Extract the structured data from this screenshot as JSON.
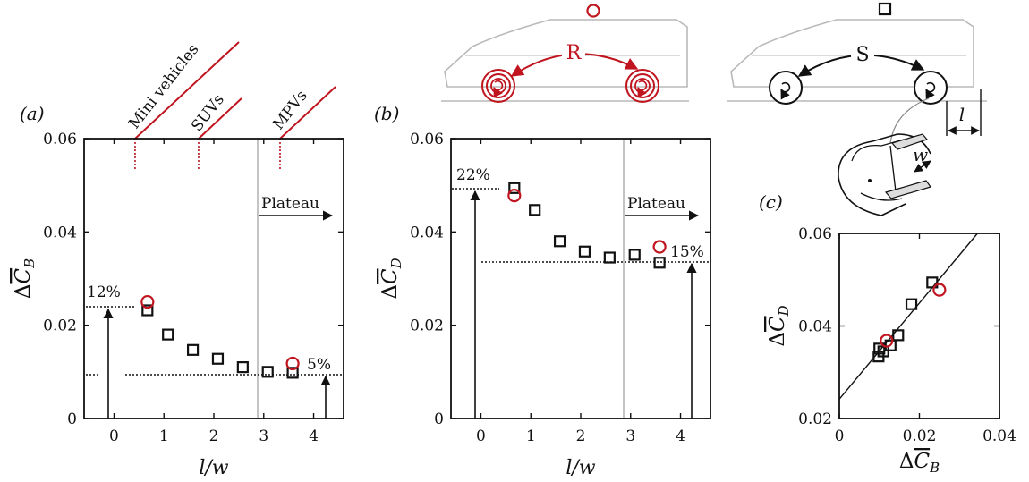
{
  "colors": {
    "axis": "#111111",
    "rotating_marker": "#c0151f",
    "stationary_marker": "#111111",
    "vertical_line": "#aaaaaa",
    "car_outline": "#b9b9b9"
  },
  "icons": {
    "car_rotating": "car-with-rotating-wheels-icon",
    "car_stationary": "car-with-stationary-wheels-icon",
    "wheel": "wheel-cross-section-icon",
    "rotating_marker": "red-circle-marker-icon",
    "stationary_marker": "black-square-marker-icon"
  },
  "schematic": {
    "rotating_label": "R",
    "stationary_label": "S",
    "length_label": "l",
    "width_label": "w"
  },
  "categories": [
    {
      "label": "Mini vehicles",
      "x": 0.55
    },
    {
      "label": "SUVs",
      "x": 1.8
    },
    {
      "label": "MPVs",
      "x": 3.45
    }
  ],
  "chart_data": [
    {
      "panel": "(a)",
      "type": "scatter",
      "xlabel": "l/w",
      "ylabel": "ΔC̄_B",
      "xlim": [
        -0.6,
        4.6
      ],
      "ylim": [
        0,
        0.06
      ],
      "x_ticks": [
        "0",
        "1",
        "2",
        "3",
        "4"
      ],
      "y_ticks": [
        "0",
        "0.02",
        "0.04",
        "0.06"
      ],
      "grid": false,
      "series": [
        {
          "marker": "square",
          "points": [
            [
              0.67,
              0.0232
            ],
            [
              1.08,
              0.018
            ],
            [
              1.58,
              0.0147
            ],
            [
              2.08,
              0.0128
            ],
            [
              2.58,
              0.011
            ],
            [
              3.08,
              0.01
            ],
            [
              3.58,
              0.0098
            ]
          ]
        },
        {
          "marker": "circle",
          "points": [
            [
              0.67,
              0.025
            ],
            [
              3.58,
              0.0118
            ]
          ]
        }
      ],
      "reference_lines": {
        "vertical_x": 3.0,
        "upper_y": 0.0245,
        "lower_y": 0.0098
      },
      "annotations": {
        "upper_percent": "12%",
        "lower_percent": "5%",
        "plateau": "Plateau"
      }
    },
    {
      "panel": "(b)",
      "type": "scatter",
      "xlabel": "l/w",
      "ylabel": "ΔC̄_D",
      "xlim": [
        -0.6,
        4.6
      ],
      "ylim": [
        0,
        0.06
      ],
      "x_ticks": [
        "0",
        "1",
        "2",
        "3",
        "4"
      ],
      "y_ticks": [
        "0",
        "0.02",
        "0.04",
        "0.06"
      ],
      "grid": false,
      "series": [
        {
          "marker": "square",
          "points": [
            [
              0.67,
              0.0494
            ],
            [
              1.08,
              0.0447
            ],
            [
              1.58,
              0.038
            ],
            [
              2.08,
              0.0358
            ],
            [
              2.58,
              0.0345
            ],
            [
              3.08,
              0.0351
            ],
            [
              3.58,
              0.0334
            ]
          ]
        },
        {
          "marker": "circle",
          "points": [
            [
              0.67,
              0.0478
            ],
            [
              3.58,
              0.0368
            ]
          ]
        }
      ],
      "reference_lines": {
        "vertical_x": 3.0,
        "upper_y": 0.0496,
        "lower_y": 0.0337
      },
      "annotations": {
        "upper_percent": "22%",
        "lower_percent": "15%",
        "plateau": "Plateau"
      }
    },
    {
      "panel": "(c)",
      "type": "scatter",
      "xlabel": "ΔC̄_B",
      "ylabel": "ΔC̄_D",
      "xlim": [
        0,
        0.04
      ],
      "ylim": [
        0.02,
        0.06
      ],
      "x_ticks": [
        "0",
        "0.02",
        "0.04"
      ],
      "y_ticks": [
        "0.02",
        "0.04",
        "0.06"
      ],
      "grid": false,
      "series": [
        {
          "marker": "square",
          "points": [
            [
              0.0232,
              0.0494
            ],
            [
              0.018,
              0.0447
            ],
            [
              0.0147,
              0.038
            ],
            [
              0.0128,
              0.0358
            ],
            [
              0.011,
              0.0345
            ],
            [
              0.01,
              0.0351
            ],
            [
              0.0098,
              0.0334
            ]
          ]
        },
        {
          "marker": "circle",
          "points": [
            [
              0.025,
              0.0478
            ],
            [
              0.0118,
              0.0368
            ]
          ]
        }
      ],
      "fit_line": {
        "x": [
          0,
          0.0345
        ],
        "y": [
          0.0242,
          0.06
        ]
      }
    }
  ]
}
